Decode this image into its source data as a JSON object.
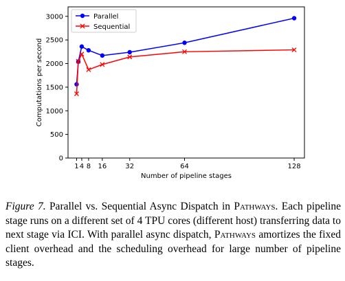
{
  "chart_data": {
    "type": "line",
    "xlabel": "Number of pipeline stages",
    "ylabel": "Computations per second",
    "xlim": [
      -4,
      134
    ],
    "ylim": [
      0,
      3200
    ],
    "x_ticks": [
      1,
      4,
      8,
      16,
      32,
      64,
      128
    ],
    "x_tick_labels": [
      "1",
      "4",
      "8",
      "16",
      "32",
      "64",
      "128"
    ],
    "y_ticks": [
      0,
      500,
      1000,
      1500,
      2000,
      2500,
      3000
    ],
    "y_tick_labels": [
      "0",
      "500",
      "1000",
      "1500",
      "2000",
      "2500",
      "3000"
    ],
    "grid": false,
    "legend": "top-left",
    "series": [
      {
        "name": "Parallel",
        "color": "#0000ff",
        "marker": "circle",
        "x": [
          1,
          2,
          4,
          8,
          16,
          32,
          64,
          128
        ],
        "values": [
          1560,
          2040,
          2360,
          2280,
          2170,
          2240,
          2440,
          2960
        ]
      },
      {
        "name": "Sequential",
        "color": "#ff0000",
        "marker": "x",
        "x": [
          1,
          2,
          4,
          8,
          16,
          32,
          64,
          128
        ],
        "values": [
          1360,
          2050,
          2200,
          1870,
          1980,
          2140,
          2250,
          2290
        ]
      }
    ]
  },
  "caption": {
    "figure_label": "Figure 7.",
    "text_1": " Parallel vs. Sequential Async Dispatch in ",
    "system_name_1": "Pathways",
    "text_2": ". Each pipeline stage runs on a different set of 4 TPU cores (different host) transferring data to next stage via ICI. With parallel async dispatch, ",
    "system_name_2": "Pathways",
    "text_3": " amortizes the fixed client overhead and the scheduling overhead for large number of pipeline stages."
  }
}
